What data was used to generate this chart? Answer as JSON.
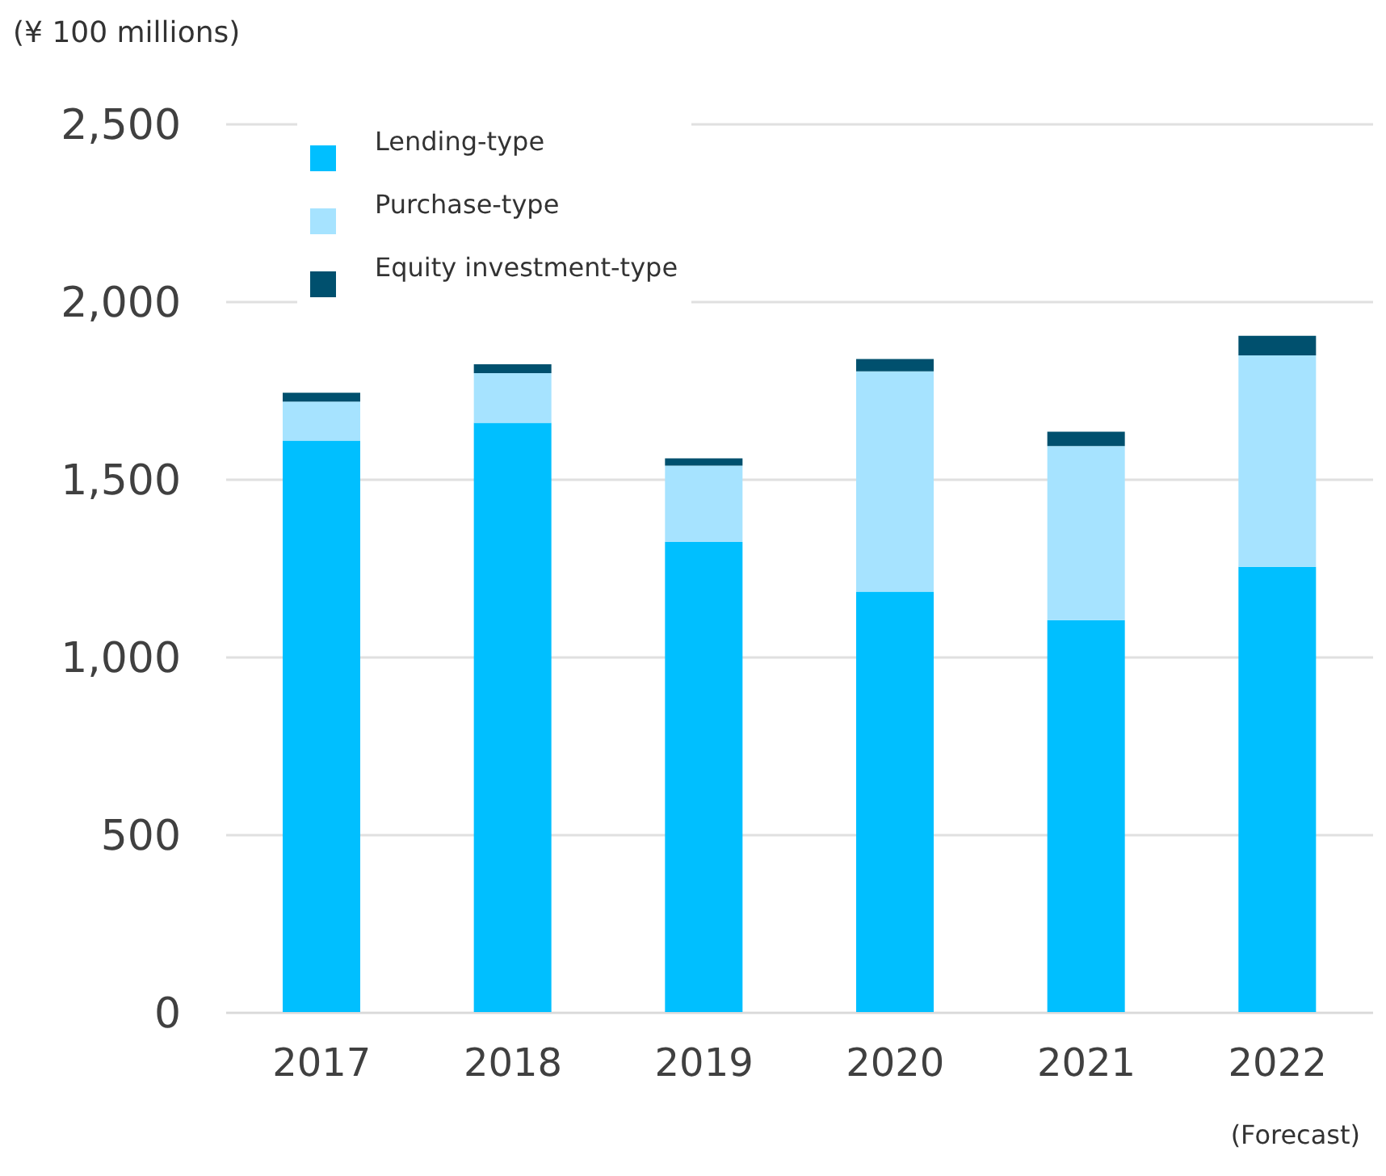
{
  "chart_data": {
    "type": "bar",
    "ylabel": "(¥ 100 millions)",
    "categories": [
      "2017",
      "2018",
      "2019",
      "2020",
      "2021",
      "2022"
    ],
    "stacked": true,
    "series": [
      {
        "name": "Lending-type",
        "color": "#00bfff",
        "values": [
          1610,
          1660,
          1325,
          1185,
          1105,
          1255
        ]
      },
      {
        "name": "Purchase-type",
        "color": "#a6e3ff",
        "values": [
          110,
          140,
          215,
          620,
          490,
          595
        ]
      },
      {
        "name": "Equity investment-type",
        "color": "#00506e",
        "values": [
          25,
          25,
          20,
          35,
          40,
          55
        ]
      }
    ],
    "ylim": [
      0,
      2500
    ],
    "yticks": [
      0,
      500,
      {
        "value": 1000,
        "label": "1,000"
      },
      {
        "value": 1500,
        "label": "1,500"
      },
      {
        "value": 2000,
        "label": "2,000"
      },
      {
        "value": 2500,
        "label": "2,500"
      }
    ],
    "grid": "y",
    "legend": "top left",
    "annotations": [
      "(Forecast)"
    ]
  }
}
